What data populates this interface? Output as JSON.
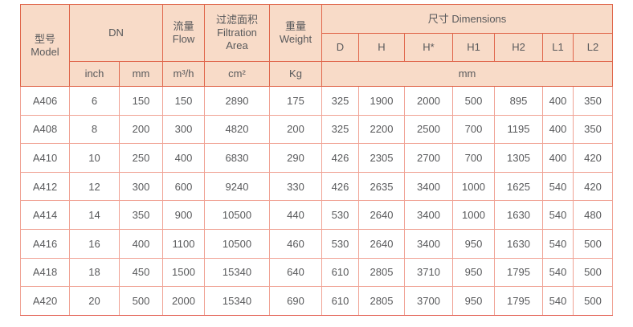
{
  "colors": {
    "header_bg": "#f8dbc8",
    "header_border": "#e0664b",
    "data_border": "#f0a294",
    "outer_bottom": "#e25a4d",
    "text": "#58595b",
    "page_bg": "#ffffff"
  },
  "table": {
    "header": {
      "model": {
        "zh": "型号",
        "en": "Model"
      },
      "dn": "DN",
      "flow": {
        "zh": "流量",
        "en": "Flow"
      },
      "filtration": {
        "zh": "过滤面积",
        "en_line1": "Filtration",
        "en_line2": "Area"
      },
      "weight": {
        "zh": "重量",
        "en": "Weight"
      },
      "dimensions": "尺寸 Dimensions",
      "dim_cols": [
        "D",
        "H",
        "H*",
        "H1",
        "H2",
        "L1",
        "L2"
      ],
      "units": {
        "inch": "inch",
        "mm": "mm",
        "flow": "m³/h",
        "area": "cm²",
        "weight": "Kg",
        "dims_mm": "mm"
      }
    },
    "rows": [
      [
        "A406",
        "6",
        "150",
        "150",
        "2890",
        "175",
        "325",
        "1900",
        "2000",
        "500",
        "895",
        "400",
        "350"
      ],
      [
        "A408",
        "8",
        "200",
        "300",
        "4820",
        "200",
        "325",
        "2200",
        "2500",
        "700",
        "1195",
        "400",
        "350"
      ],
      [
        "A410",
        "10",
        "250",
        "400",
        "6830",
        "290",
        "426",
        "2305",
        "2700",
        "700",
        "1305",
        "400",
        "420"
      ],
      [
        "A412",
        "12",
        "300",
        "600",
        "9240",
        "330",
        "426",
        "2635",
        "3400",
        "1000",
        "1625",
        "540",
        "420"
      ],
      [
        "A414",
        "14",
        "350",
        "900",
        "10500",
        "440",
        "530",
        "2640",
        "3400",
        "1000",
        "1630",
        "540",
        "480"
      ],
      [
        "A416",
        "16",
        "400",
        "1100",
        "10500",
        "460",
        "530",
        "2640",
        "3400",
        "950",
        "1630",
        "540",
        "500"
      ],
      [
        "A418",
        "18",
        "450",
        "1500",
        "15340",
        "640",
        "610",
        "2805",
        "3710",
        "950",
        "1795",
        "540",
        "500"
      ],
      [
        "A420",
        "20",
        "500",
        "2000",
        "15340",
        "690",
        "610",
        "2805",
        "3700",
        "950",
        "1795",
        "540",
        "500"
      ]
    ]
  }
}
